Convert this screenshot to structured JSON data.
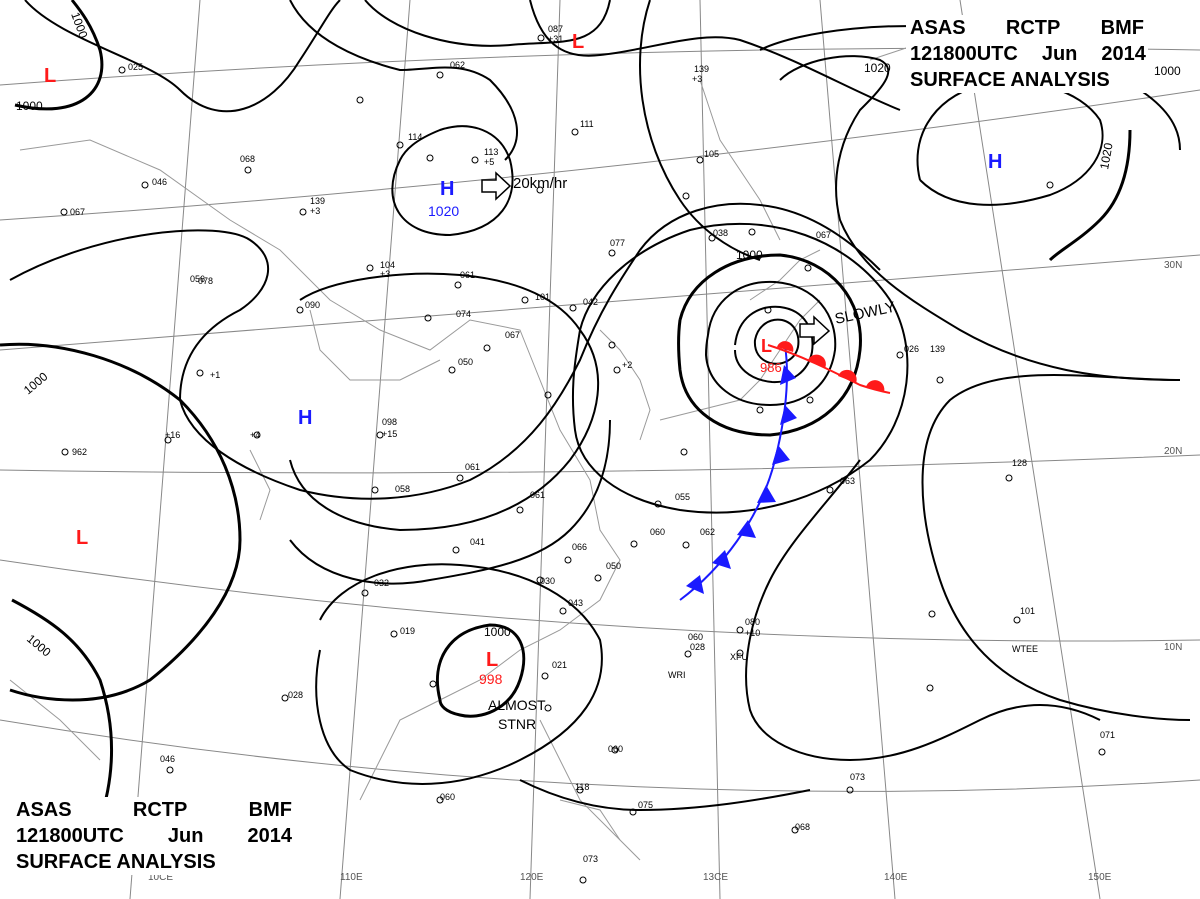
{
  "titles": {
    "top": {
      "line1": [
        "ASAS",
        "RCTP",
        "BMF"
      ],
      "line2": [
        "121800UTC",
        "Jun",
        "2014"
      ],
      "line3": "SURFACE ANALYSIS"
    },
    "bottom": {
      "line1": [
        "ASAS",
        "RCTP",
        "BMF"
      ],
      "line2": [
        "121800UTC",
        "Jun",
        "2014"
      ],
      "line3": "SURFACE ANALYSIS"
    }
  },
  "colors": {
    "isobar": "#000000",
    "graticule": "#888888",
    "coast": "#999999",
    "high": "#1a1aff",
    "low": "#ff1a1a",
    "cold_front": "#1a1aff",
    "warm_front": "#ff1a1a"
  },
  "lat_labels": [
    "30N",
    "20N",
    "10N"
  ],
  "lon_labels": [
    "110E",
    "120E",
    "13CE",
    "140E",
    "150E",
    "10CE"
  ],
  "pressure_centers": [
    {
      "type": "L",
      "pressure": ""
    },
    {
      "type": "L",
      "pressure": ""
    },
    {
      "type": "L",
      "pressure": ""
    },
    {
      "type": "H",
      "pressure": "1020"
    },
    {
      "type": "H",
      "pressure": ""
    },
    {
      "type": "H",
      "pressure": ""
    },
    {
      "type": "L",
      "pressure": "986"
    },
    {
      "type": "L",
      "pressure": "998"
    }
  ],
  "isobar_labels": [
    "1000",
    "1000",
    "1020",
    "1020",
    "1000",
    "1000",
    "1000",
    "1000",
    "1000"
  ],
  "motion": [
    {
      "text": "20km/hr"
    },
    {
      "text": "SLOWLY"
    }
  ],
  "annotations": {
    "almost_stnr_1": "ALMOST",
    "almost_stnr_2": "STNR"
  },
  "stations": [
    "087",
    "+31",
    "062",
    "111",
    "113",
    "114",
    "139",
    "105",
    "+3",
    "+5",
    "025",
    "046",
    "067",
    "068",
    "139",
    "+3",
    "104",
    "+3",
    "061",
    "101",
    "042",
    "077",
    "038",
    "067",
    "078",
    "090",
    "074",
    "067",
    "050",
    "098",
    "+15",
    "061",
    "058",
    "061",
    "041",
    "032",
    "066",
    "030",
    "043",
    "050",
    "019",
    "028",
    "028",
    "021",
    "962",
    "+16",
    "+1",
    "+4",
    "056",
    "055",
    "062",
    "060",
    "080",
    "+10",
    "060",
    "XFU",
    "WRI",
    "101",
    "WTEE",
    "063",
    "128",
    "139",
    "026",
    "071",
    "073",
    "068",
    "075",
    "060",
    "073",
    "046",
    "118",
    "060",
    "+2"
  ]
}
